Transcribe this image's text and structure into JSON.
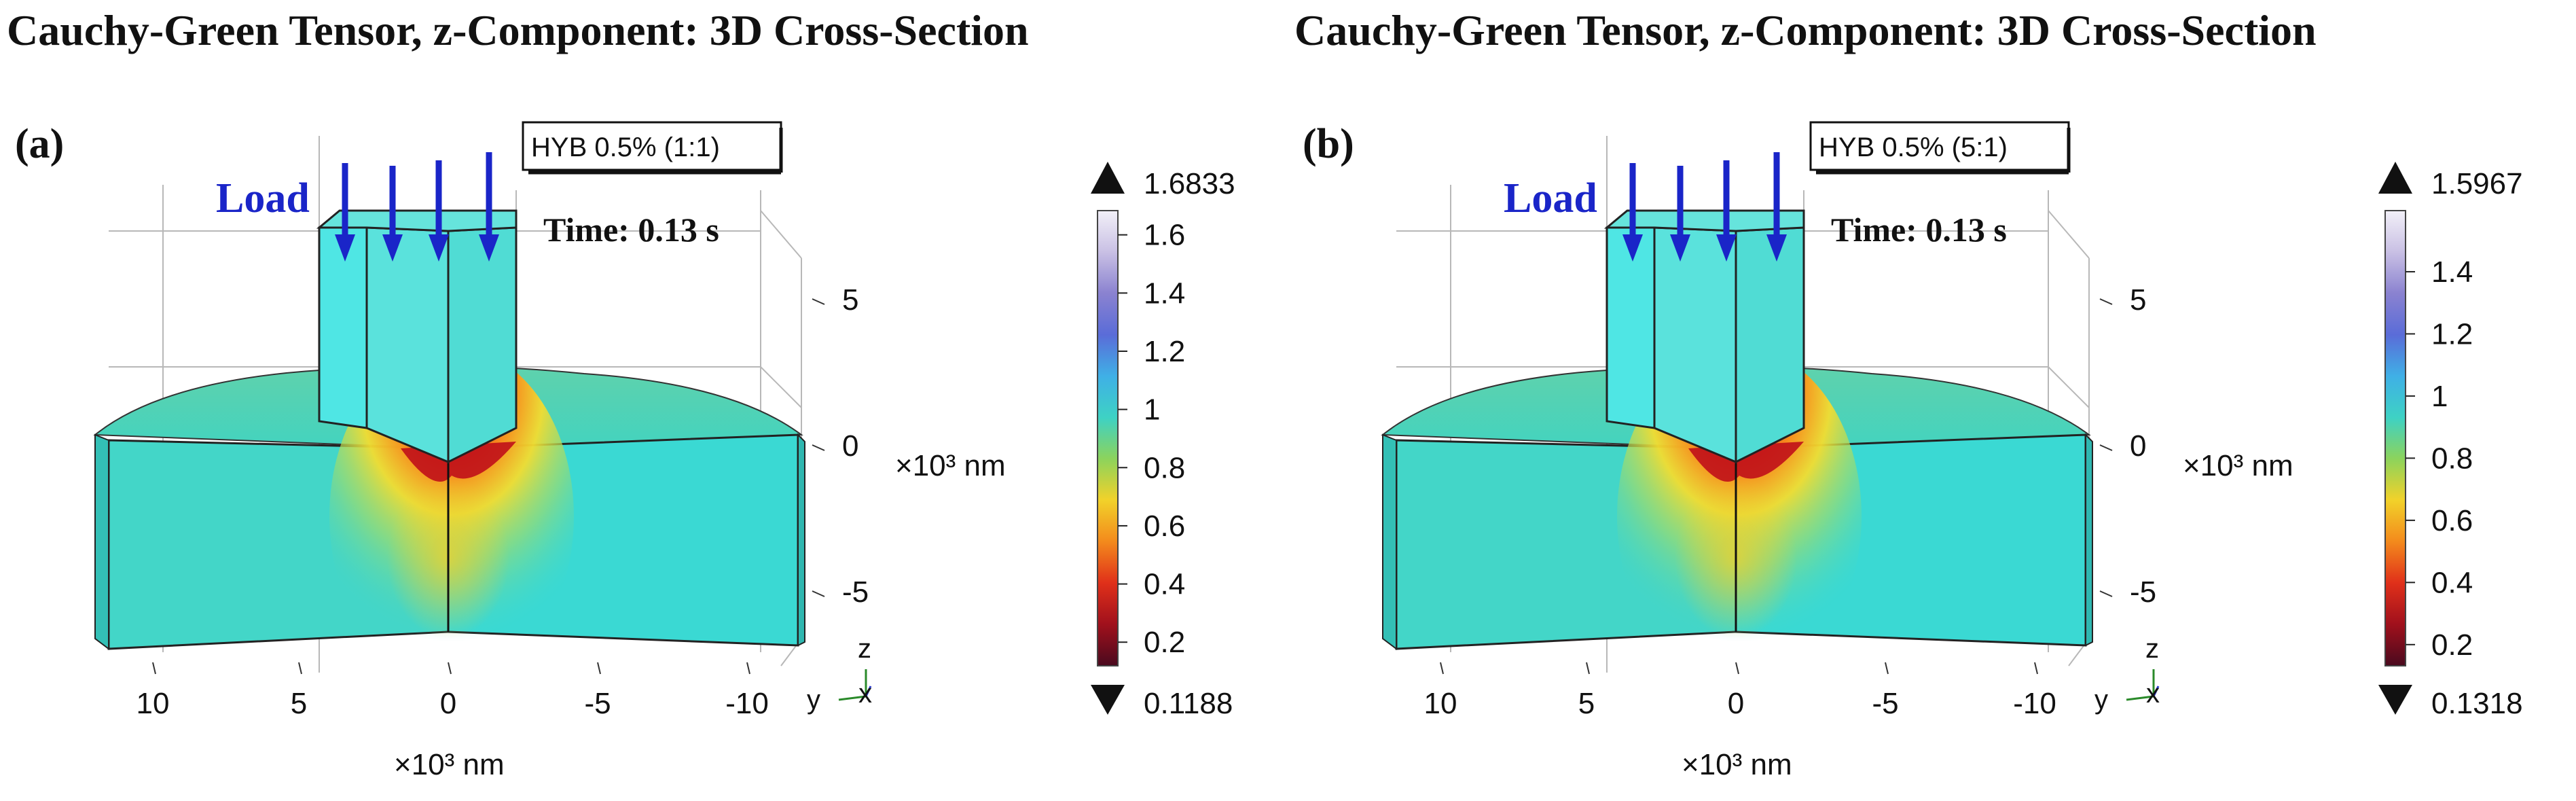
{
  "figure": {
    "panels": [
      {
        "title": "Cauchy-Green Tensor, z-Component: 3D Cross-Section",
        "label": "(a)",
        "dataset": "HYB 0.5% (1:1)",
        "time": "Time: 0.13 s",
        "load_label": "Load",
        "colorbar": {
          "max_label": "1.6833",
          "min_label": "0.1188",
          "max": 1.6833,
          "min": 0.1188,
          "ticks": [
            "1.6",
            "1.4",
            "1.2",
            "1",
            "0.8",
            "0.6",
            "0.4",
            "0.2"
          ],
          "tick_values": [
            1.6,
            1.4,
            1.2,
            1.0,
            0.8,
            0.6,
            0.4,
            0.2
          ]
        },
        "x_axis": {
          "ticks": [
            "10",
            "5",
            "0",
            "-5",
            "-10"
          ],
          "label": "×10³ nm"
        },
        "z_axis": {
          "ticks": [
            "5",
            "0",
            "-5"
          ],
          "label": "×10³ nm"
        },
        "triad": {
          "z": "z",
          "y": "y",
          "x": "x"
        }
      },
      {
        "title": "Cauchy-Green Tensor, z-Component: 3D Cross-Section",
        "label": "(b)",
        "dataset": "HYB 0.5% (5:1)",
        "time": "Time: 0.13 s",
        "load_label": "Load",
        "colorbar": {
          "max_label": "1.5967",
          "min_label": "0.1318",
          "max": 1.5967,
          "min": 0.1318,
          "ticks": [
            "1.4",
            "1.2",
            "1",
            "0.8",
            "0.6",
            "0.4",
            "0.2"
          ],
          "tick_values": [
            1.4,
            1.2,
            1.0,
            0.8,
            0.6,
            0.4,
            0.2
          ]
        },
        "x_axis": {
          "ticks": [
            "10",
            "5",
            "0",
            "-5",
            "-10"
          ],
          "label": "×10³ nm"
        },
        "z_axis": {
          "ticks": [
            "5",
            "0",
            "-5"
          ],
          "label": "×10³ nm"
        },
        "triad": {
          "z": "z",
          "y": "y",
          "x": "x"
        }
      }
    ]
  },
  "colors": {
    "load_arrow": "#1a25c8",
    "surface_base": "#3fd6c9",
    "surface_top": "#49d7bf",
    "indenter": "#55e8e6",
    "hot_spot": "#d8141c",
    "colormap": [
      "#4a0a1e",
      "#a0101c",
      "#e0301a",
      "#f38a1c",
      "#f2d22a",
      "#8cd35c",
      "#3ed2c4",
      "#3fb0e6",
      "#5a6cd8",
      "#8a82d0",
      "#c9c0e4",
      "#f2f0f8"
    ]
  }
}
